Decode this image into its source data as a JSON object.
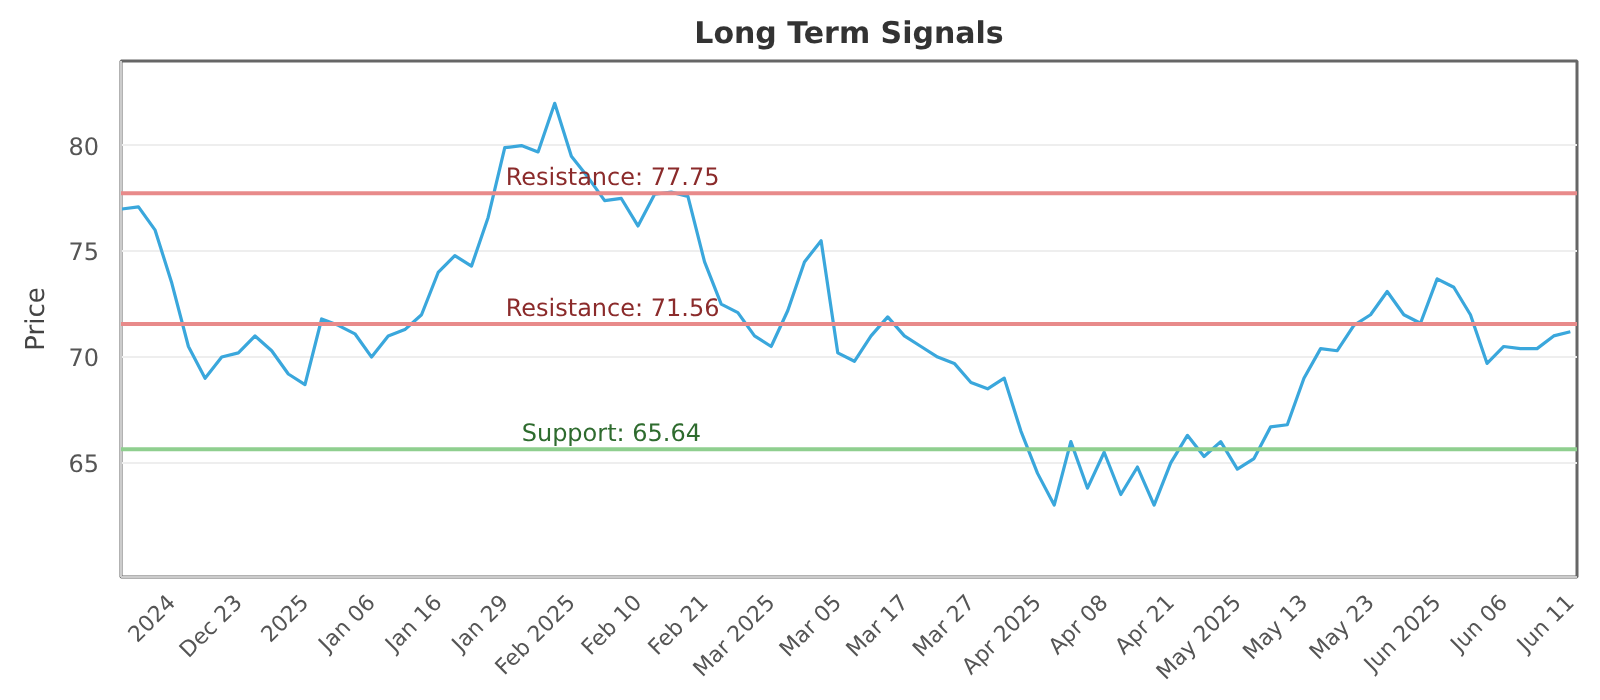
{
  "chart_data": {
    "type": "line",
    "title": "Long Term Signals",
    "ylabel": "Price",
    "categories": [
      null,
      null,
      null,
      "2024",
      null,
      null,
      null,
      "Dec 23",
      null,
      null,
      null,
      "2025",
      null,
      null,
      null,
      "Jan 06",
      null,
      null,
      null,
      "Jan 16",
      null,
      null,
      null,
      "Jan 29",
      null,
      null,
      null,
      "Feb 2025",
      null,
      null,
      null,
      "Feb 10",
      null,
      null,
      null,
      "Feb 21",
      null,
      null,
      null,
      "Mar 2025",
      null,
      null,
      null,
      "Mar 05",
      null,
      null,
      null,
      "Mar 17",
      null,
      null,
      null,
      "Mar 27",
      null,
      null,
      null,
      "Apr 2025",
      null,
      null,
      null,
      "Apr 08",
      null,
      null,
      null,
      "Apr 21",
      null,
      null,
      null,
      "May 2025",
      null,
      null,
      null,
      "May 13",
      null,
      null,
      null,
      "May 23",
      null,
      null,
      null,
      "Jun 2025",
      null,
      null,
      null,
      "Jun 06",
      null,
      null,
      null,
      "Jun 11"
    ],
    "series": [
      {
        "color": "#3aa7dc",
        "values": [
          77.0,
          77.1,
          76.0,
          73.5,
          70.5,
          69.0,
          70.0,
          70.2,
          71.0,
          70.3,
          69.2,
          68.7,
          71.8,
          71.5,
          71.1,
          70.0,
          71.0,
          71.3,
          72.0,
          74.0,
          74.8,
          74.3,
          76.6,
          79.9,
          80.0,
          79.7,
          82.0,
          79.5,
          78.5,
          77.4,
          77.5,
          76.2,
          77.7,
          77.8,
          77.6,
          74.5,
          72.5,
          72.1,
          71.0,
          70.5,
          72.2,
          74.5,
          75.5,
          70.2,
          69.8,
          71.0,
          71.9,
          71.0,
          70.5,
          70.0,
          69.7,
          68.8,
          68.5,
          69.0,
          66.5,
          64.5,
          63.0,
          66.0,
          63.8,
          65.5,
          63.5,
          64.8,
          63.0,
          65.0,
          66.3,
          65.3,
          66.0,
          64.7,
          65.2,
          66.7,
          66.8,
          69.0,
          70.4,
          70.3,
          71.5,
          72.0,
          73.1,
          72.0,
          71.6,
          73.7,
          73.3,
          72.0,
          69.7,
          70.5,
          70.4,
          70.4,
          71.0,
          71.2
        ]
      }
    ],
    "ylim": [
      59.6,
      84.0
    ],
    "yticks": [
      65,
      70,
      75,
      80
    ],
    "grid": "y",
    "marker": "none",
    "line_style": "solid",
    "ref_lines": [
      {
        "axis": "y",
        "value": 77.75,
        "label": "Resistance: 77.75",
        "color": "#e88a8a"
      },
      {
        "axis": "y",
        "value": 71.56,
        "label": "Resistance: 71.56",
        "color": "#e88a8a"
      },
      {
        "axis": "y",
        "value": 65.64,
        "label": "Support: 65.64",
        "color": "#8fcf8f"
      }
    ]
  }
}
